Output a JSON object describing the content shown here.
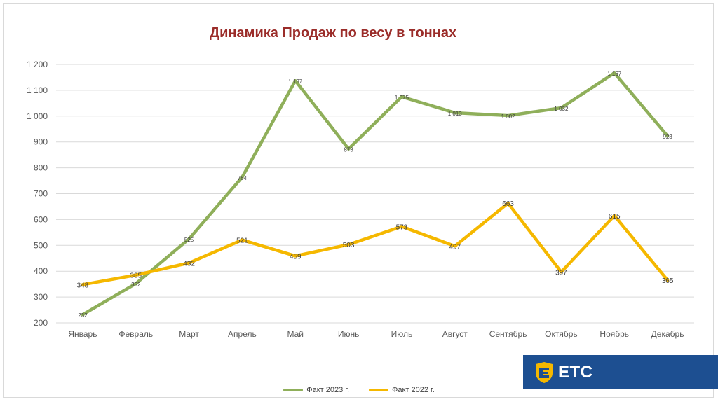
{
  "chart_data": {
    "type": "line",
    "title": "Динамика Продаж по весу в тоннах",
    "categories": [
      "Январь",
      "Февраль",
      "Март",
      "Апрель",
      "Май",
      "Июнь",
      "Июль",
      "Август",
      "Сентябрь",
      "Октябрь",
      "Ноябрь",
      "Декабрь"
    ],
    "ylim": [
      200,
      1200
    ],
    "yticks": [
      200,
      300,
      400,
      500,
      600,
      700,
      800,
      900,
      1000,
      1100,
      1200
    ],
    "ytick_labels": [
      "200",
      "300",
      "400",
      "500",
      "600",
      "700",
      "800",
      "900",
      "1 000",
      "1 100",
      "1 200"
    ],
    "grid": true,
    "legend_position": "bottom",
    "series": [
      {
        "name": "Факт 2023 г.",
        "color": "#8faf5a",
        "values": [
          232,
          352,
          525,
          764,
          1137,
          873,
          1075,
          1013,
          1002,
          1032,
          1167,
          923
        ],
        "labels": [
          "232",
          "352",
          "525",
          "764",
          "1 137",
          "873",
          "1 075",
          "1 013",
          "1 002",
          "1 032",
          "1 167",
          "923"
        ]
      },
      {
        "name": "Факт 2022 г.",
        "color": "#f5b800",
        "values": [
          348,
          385,
          432,
          521,
          459,
          503,
          573,
          497,
          663,
          397,
          615,
          365
        ],
        "labels": [
          "348",
          "385",
          "432",
          "521",
          "459",
          "503",
          "573",
          "497",
          "663",
          "397",
          "615",
          "365"
        ]
      }
    ]
  },
  "logo": {
    "text": "ETC",
    "color": "#1d4f91",
    "icon_color": "#f5b800"
  }
}
